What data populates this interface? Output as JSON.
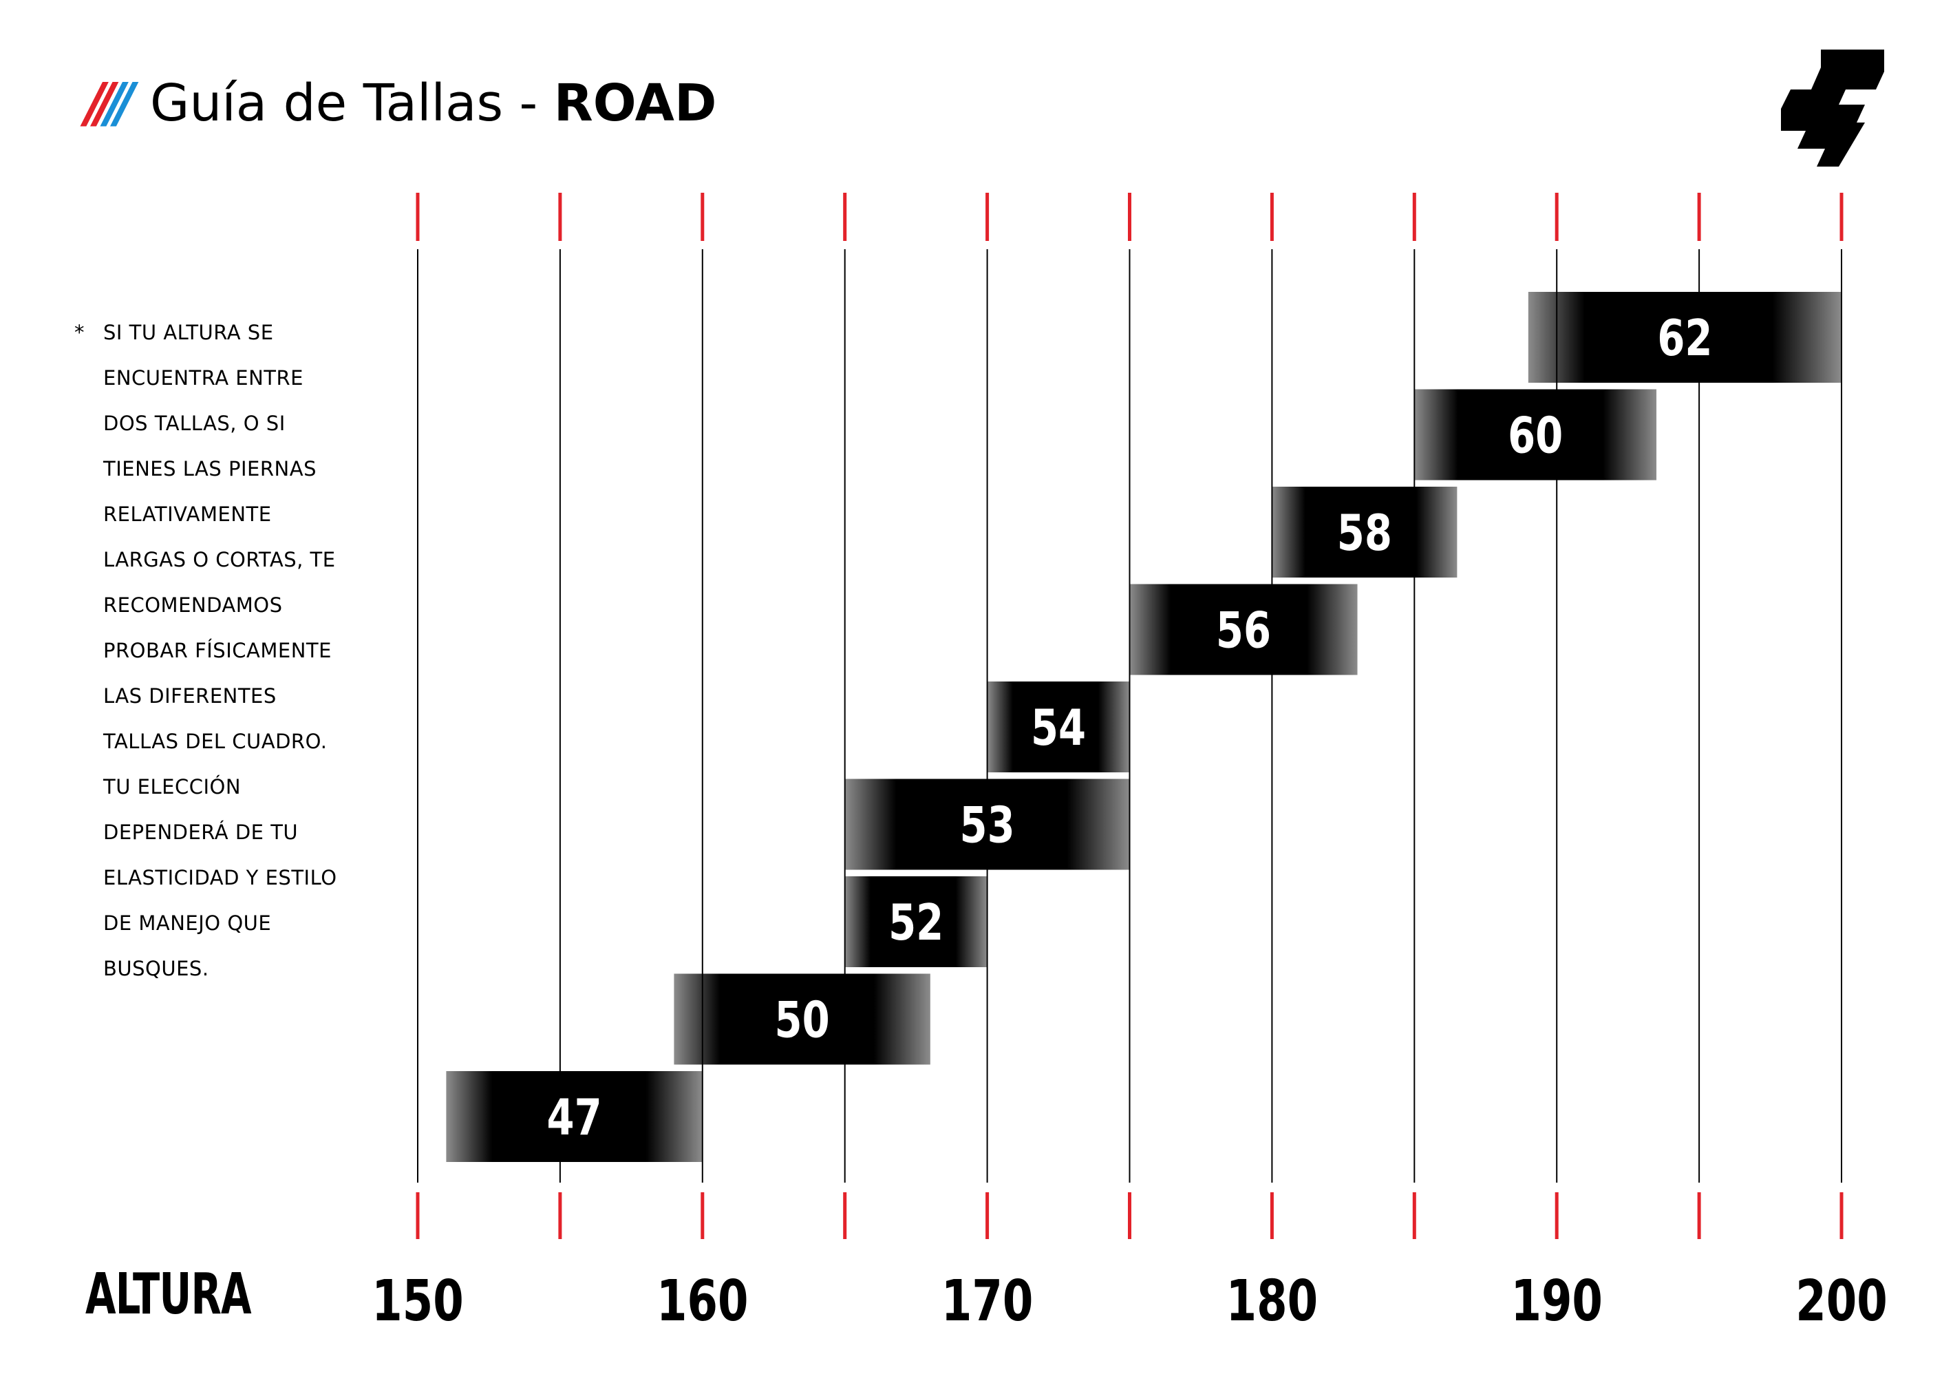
{
  "header": {
    "slash_red": "/",
    "slash_blue": "/",
    "title_light": "Guía de Tallas - ",
    "title_bold": "ROAD"
  },
  "logo": {
    "icon": "brand-logo-icon",
    "color": "#000000"
  },
  "note": {
    "star": "*",
    "lines": [
      "SI TU ALTURA SE",
      "ENCUENTRA ENTRE",
      "DOS TALLAS, O SI",
      "TIENES LAS PIERNAS",
      "RELATIVAMENTE",
      "LARGAS O CORTAS, TE",
      "RECOMENDAMOS",
      "PROBAR FÍSICAMENTE",
      "LAS DIFERENTES",
      "TALLAS DEL CUADRO.",
      "TU ELECCIÓN",
      "DEPENDERÁ DE TU",
      "ELASTICIDAD Y ESTILO",
      "DE MANEJO QUE",
      "BUSQUES."
    ]
  },
  "colors": {
    "tick": "#e3222a",
    "gridline": "#000000",
    "bar": "#000000",
    "bar_label": "#ffffff",
    "accent_blue": "#1a8fd6"
  },
  "chart_data": {
    "type": "bar",
    "orientation": "horizontal-range",
    "xlabel": "ALTURA",
    "xlim": [
      150,
      200
    ],
    "x_gridlines": [
      150,
      155,
      160,
      165,
      170,
      175,
      180,
      185,
      190,
      195,
      200
    ],
    "x_tick_labels": [
      "150",
      "160",
      "170",
      "180",
      "190",
      "200"
    ],
    "x_tick_values": [
      150,
      160,
      170,
      180,
      190,
      200
    ],
    "categories": [
      "62",
      "60",
      "58",
      "56",
      "54",
      "53",
      "52",
      "50",
      "47"
    ],
    "ranges": [
      [
        189,
        200
      ],
      [
        185,
        193.5
      ],
      [
        180,
        186.5
      ],
      [
        175,
        183
      ],
      [
        170,
        175
      ],
      [
        165,
        175
      ],
      [
        165,
        170
      ],
      [
        159,
        168
      ],
      [
        151,
        160
      ]
    ],
    "grid": true,
    "legend": "none"
  }
}
